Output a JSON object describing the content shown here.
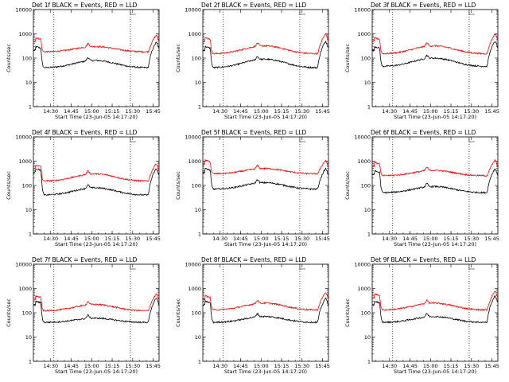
{
  "figure": {
    "background": "#ffffff",
    "events_color": "#000000",
    "lld_color": "#ff0000"
  },
  "chart_data": [
    {
      "type": "line",
      "title": "Det 1f BLACK = Events, RED = LLD",
      "xlabel": "Start Time (23-Jun-05 14:17:20)",
      "ylabel": "Counts/sec",
      "yscale": "log",
      "ylim": [
        1,
        10000
      ],
      "ytick_labels": [
        "1",
        "10",
        "100",
        "1000",
        "10000"
      ],
      "x_tick_labels": [
        "14:30",
        "14:45",
        "15:00",
        "15:15",
        "15:30",
        "15:45"
      ],
      "x_minutes_from_14_17_20": [
        12.67,
        27.67,
        42.67,
        57.67,
        72.67,
        87.67
      ],
      "xlim_minutes": [
        0,
        92
      ],
      "vline_minutes": [
        15,
        71
      ],
      "series": [
        {
          "name": "Events",
          "color": "#000000",
          "base": 40,
          "start_peak": 300,
          "end_peak": 450,
          "hump": 80
        },
        {
          "name": "LLD",
          "color": "#ff0000",
          "base": 180,
          "start_peak": 700,
          "end_peak": 900,
          "hump": 300
        }
      ]
    },
    {
      "type": "line",
      "title": "Det 2f BLACK = Events, RED = LLD",
      "xlabel": "Start Time (23-Jun-05 14:17:20)",
      "ylabel": "Counts/sec",
      "yscale": "log",
      "ylim": [
        1,
        10000
      ],
      "ytick_labels": [
        "1",
        "10",
        "100",
        "1000",
        "10000"
      ],
      "x_tick_labels": [
        "14:30",
        "14:45",
        "15:00",
        "15:15",
        "15:30",
        "15:45"
      ],
      "x_minutes_from_14_17_20": [
        12.67,
        27.67,
        42.67,
        57.67,
        72.67,
        87.67
      ],
      "xlim_minutes": [
        0,
        92
      ],
      "vline_minutes": [
        15,
        71
      ],
      "series": [
        {
          "name": "Events",
          "color": "#000000",
          "base": 40,
          "start_peak": 300,
          "end_peak": 500,
          "hump": 90
        },
        {
          "name": "LLD",
          "color": "#ff0000",
          "base": 150,
          "start_peak": 700,
          "end_peak": 1000,
          "hump": 320
        }
      ]
    },
    {
      "type": "line",
      "title": "Det 3f BLACK = Events, RED = LLD",
      "xlabel": "Start Time (23-Jun-05 14:17:20)",
      "ylabel": "Counts/sec",
      "yscale": "log",
      "ylim": [
        1,
        10000
      ],
      "ytick_labels": [
        "1",
        "10",
        "100",
        "1000",
        "10000"
      ],
      "x_tick_labels": [
        "14:30",
        "14:45",
        "15:00",
        "15:15",
        "15:30",
        "15:45"
      ],
      "x_minutes_from_14_17_20": [
        12.67,
        27.67,
        42.67,
        57.67,
        72.67,
        87.67
      ],
      "xlim_minutes": [
        0,
        92
      ],
      "vline_minutes": [
        15,
        71
      ],
      "series": [
        {
          "name": "Events",
          "color": "#000000",
          "base": 45,
          "start_peak": 300,
          "end_peak": 500,
          "hump": 100
        },
        {
          "name": "LLD",
          "color": "#ff0000",
          "base": 150,
          "start_peak": 700,
          "end_peak": 1000,
          "hump": 320
        }
      ]
    },
    {
      "type": "line",
      "title": "Det 4f BLACK = Events, RED = LLD",
      "xlabel": "Start Time (23-Jun-05 14:17:20)",
      "ylabel": "Counts/sec",
      "yscale": "log",
      "ylim": [
        1,
        10000
      ],
      "ytick_labels": [
        "1",
        "10",
        "100",
        "1000",
        "10000"
      ],
      "x_tick_labels": [
        "14:30",
        "14:45",
        "15:00",
        "15:15",
        "15:30",
        "15:45"
      ],
      "x_minutes_from_14_17_20": [
        12.67,
        27.67,
        42.67,
        57.67,
        72.67,
        87.67
      ],
      "xlim_minutes": [
        0,
        92
      ],
      "vline_minutes": [
        15,
        71
      ],
      "series": [
        {
          "name": "Events",
          "color": "#000000",
          "base": 40,
          "start_peak": 500,
          "end_peak": 500,
          "hump": 80
        },
        {
          "name": "LLD",
          "color": "#ff0000",
          "base": 150,
          "start_peak": 700,
          "end_peak": 800,
          "hump": 300
        }
      ]
    },
    {
      "type": "line",
      "title": "Det 5f BLACK = Events, RED = LLD",
      "xlabel": "Start Time (23-Jun-05 14:17:20)",
      "ylabel": "Counts/sec",
      "yscale": "log",
      "ylim": [
        1,
        10000
      ],
      "ytick_labels": [
        "1",
        "10",
        "100",
        "1000",
        "10000"
      ],
      "x_tick_labels": [
        "14:30",
        "14:45",
        "15:00",
        "15:15",
        "15:30",
        "15:45"
      ],
      "x_minutes_from_14_17_20": [
        12.67,
        27.67,
        42.67,
        57.67,
        72.67,
        87.67
      ],
      "xlim_minutes": [
        0,
        92
      ],
      "vline_minutes": [
        15,
        71
      ],
      "series": [
        {
          "name": "Events",
          "color": "#000000",
          "base": 70,
          "start_peak": 500,
          "end_peak": 500,
          "hump": 130
        },
        {
          "name": "LLD",
          "color": "#ff0000",
          "base": 300,
          "start_peak": 1100,
          "end_peak": 1100,
          "hump": 500
        }
      ]
    },
    {
      "type": "line",
      "title": "Det 6f BLACK = Events, RED = LLD",
      "xlabel": "Start Time (23-Jun-05 14:17:20)",
      "ylabel": "Counts/sec",
      "yscale": "log",
      "ylim": [
        1,
        10000
      ],
      "ytick_labels": [
        "1",
        "10",
        "100",
        "1000",
        "10000"
      ],
      "x_tick_labels": [
        "14:30",
        "14:45",
        "15:00",
        "15:15",
        "15:30",
        "15:45"
      ],
      "x_minutes_from_14_17_20": [
        12.67,
        27.67,
        42.67,
        57.67,
        72.67,
        87.67
      ],
      "xlim_minutes": [
        0,
        92
      ],
      "vline_minutes": [
        15,
        71
      ],
      "series": [
        {
          "name": "Events",
          "color": "#000000",
          "base": 50,
          "start_peak": 400,
          "end_peak": 500,
          "hump": 90
        },
        {
          "name": "LLD",
          "color": "#ff0000",
          "base": 250,
          "start_peak": 900,
          "end_peak": 1100,
          "hump": 420
        }
      ]
    },
    {
      "type": "line",
      "title": "Det 7f BLACK = Events, RED = LLD",
      "xlabel": "Start Time (23-Jun-05 14:17:20)",
      "ylabel": "Counts/sec",
      "yscale": "log",
      "ylim": [
        1,
        10000
      ],
      "ytick_labels": [
        "1",
        "10",
        "100",
        "1000",
        "10000"
      ],
      "x_tick_labels": [
        "14:30",
        "14:45",
        "15:00",
        "15:15",
        "15:30",
        "15:45"
      ],
      "x_minutes_from_14_17_20": [
        12.67,
        27.67,
        42.67,
        57.67,
        72.67,
        87.67
      ],
      "xlim_minutes": [
        0,
        92
      ],
      "vline_minutes": [
        15,
        71
      ],
      "series": [
        {
          "name": "Events",
          "color": "#000000",
          "base": 40,
          "start_peak": 300,
          "end_peak": 400,
          "hump": 60
        },
        {
          "name": "LLD",
          "color": "#ff0000",
          "base": 120,
          "start_peak": 500,
          "end_peak": 600,
          "hump": 220
        }
      ]
    },
    {
      "type": "line",
      "title": "Det 8f BLACK = Events, RED = LLD",
      "xlabel": "Start Time (23-Jun-05 14:17:20)",
      "ylabel": "Counts/sec",
      "yscale": "log",
      "ylim": [
        1,
        10000
      ],
      "ytick_labels": [
        "1",
        "10",
        "100",
        "1000",
        "10000"
      ],
      "x_tick_labels": [
        "14:30",
        "14:45",
        "15:00",
        "15:15",
        "15:30",
        "15:45"
      ],
      "x_minutes_from_14_17_20": [
        12.67,
        27.67,
        42.67,
        57.67,
        72.67,
        87.67
      ],
      "xlim_minutes": [
        0,
        92
      ],
      "vline_minutes": [
        15,
        71
      ],
      "series": [
        {
          "name": "Events",
          "color": "#000000",
          "base": 40,
          "start_peak": 300,
          "end_peak": 400,
          "hump": 70
        },
        {
          "name": "LLD",
          "color": "#ff0000",
          "base": 130,
          "start_peak": 500,
          "end_peak": 700,
          "hump": 250
        }
      ]
    },
    {
      "type": "line",
      "title": "Det 9f BLACK = Events, RED = LLD",
      "xlabel": "Start Time (23-Jun-05 14:17:20)",
      "ylabel": "Counts/sec",
      "yscale": "log",
      "ylim": [
        1,
        10000
      ],
      "ytick_labels": [
        "1",
        "10",
        "100",
        "1000",
        "10000"
      ],
      "x_tick_labels": [
        "14:30",
        "14:45",
        "15:00",
        "15:15",
        "15:30",
        "15:45"
      ],
      "x_minutes_from_14_17_20": [
        12.67,
        27.67,
        42.67,
        57.67,
        72.67,
        87.67
      ],
      "xlim_minutes": [
        0,
        92
      ],
      "vline_minutes": [
        15,
        71
      ],
      "series": [
        {
          "name": "Events",
          "color": "#000000",
          "base": 40,
          "start_peak": 300,
          "end_peak": 500,
          "hump": 70
        },
        {
          "name": "LLD",
          "color": "#ff0000",
          "base": 130,
          "start_peak": 600,
          "end_peak": 800,
          "hump": 250
        }
      ]
    }
  ]
}
